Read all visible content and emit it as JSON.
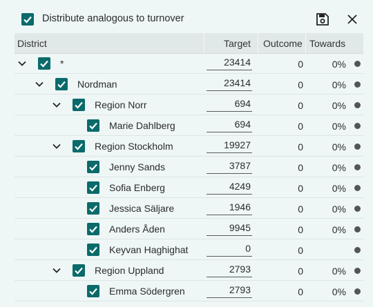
{
  "top": {
    "checkbox_label": "Distribute analogous to turnover",
    "save_icon": "save-icon",
    "close_icon": "close-icon"
  },
  "columns": {
    "district": "District",
    "target": "Target",
    "outcome": "Outcome",
    "towards": "Towards"
  },
  "rows": [
    {
      "name": "*",
      "level": 0,
      "expandable": true,
      "target": "23414",
      "outcome": "0",
      "towards": "0%"
    },
    {
      "name": "Nordman",
      "level": 1,
      "expandable": true,
      "target": "23414",
      "outcome": "0",
      "towards": "0%"
    },
    {
      "name": "Region Norr",
      "level": 2,
      "expandable": true,
      "target": "694",
      "outcome": "0",
      "towards": "0%"
    },
    {
      "name": "Marie Dahlberg",
      "level": 3,
      "expandable": false,
      "target": "694",
      "outcome": "0",
      "towards": "0%"
    },
    {
      "name": "Region Stockholm",
      "level": 2,
      "expandable": true,
      "target": "19927",
      "outcome": "0",
      "towards": "0%"
    },
    {
      "name": "Jenny Sands",
      "level": 3,
      "expandable": false,
      "target": "3787",
      "outcome": "0",
      "towards": "0%"
    },
    {
      "name": "Sofia Enberg",
      "level": 3,
      "expandable": false,
      "target": "4249",
      "outcome": "0",
      "towards": "0%"
    },
    {
      "name": "Jessica Säljare",
      "level": 3,
      "expandable": false,
      "target": "1946",
      "outcome": "0",
      "towards": "0%"
    },
    {
      "name": "Anders Åden",
      "level": 3,
      "expandable": false,
      "target": "9945",
      "outcome": "0",
      "towards": "0%"
    },
    {
      "name": "Keyvan Haghighat",
      "level": 3,
      "expandable": false,
      "target": "0",
      "outcome": "0",
      "towards": ""
    },
    {
      "name": "Region Uppland",
      "level": 2,
      "expandable": true,
      "target": "2793",
      "outcome": "0",
      "towards": "0%"
    },
    {
      "name": "Emma Södergren",
      "level": 3,
      "expandable": false,
      "target": "2793",
      "outcome": "0",
      "towards": "0%"
    }
  ],
  "colors": {
    "accent": "#0b6a6a",
    "background": "#eef6f6",
    "header": "#e1e8e8",
    "dot": "#555555"
  }
}
